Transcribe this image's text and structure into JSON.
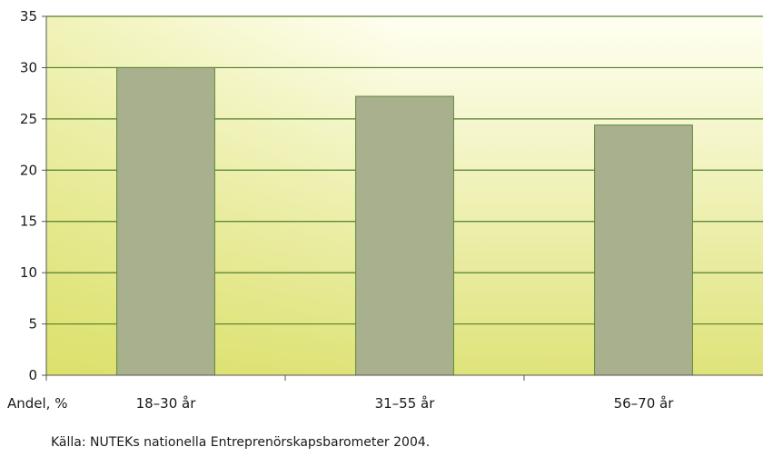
{
  "chart_data": {
    "type": "bar",
    "categories": [
      "18–30 år",
      "31–55 år",
      "56–70 år"
    ],
    "values": [
      30,
      27.2,
      24.4
    ],
    "ylabel": "Andel, %",
    "ylim": [
      0,
      35
    ],
    "yticks": [
      0,
      5,
      10,
      15,
      20,
      25,
      30,
      35
    ],
    "grid": true,
    "source": "Källa: NUTEKs nationella Entreprenörskapsbarometer 2004.",
    "colors": {
      "bar_fill": "#a8b08e",
      "bar_stroke": "#5d8a3a",
      "grid": "#4f7f2e",
      "background_top": "#fffff2",
      "background_bottom": "#dfe37a"
    }
  }
}
